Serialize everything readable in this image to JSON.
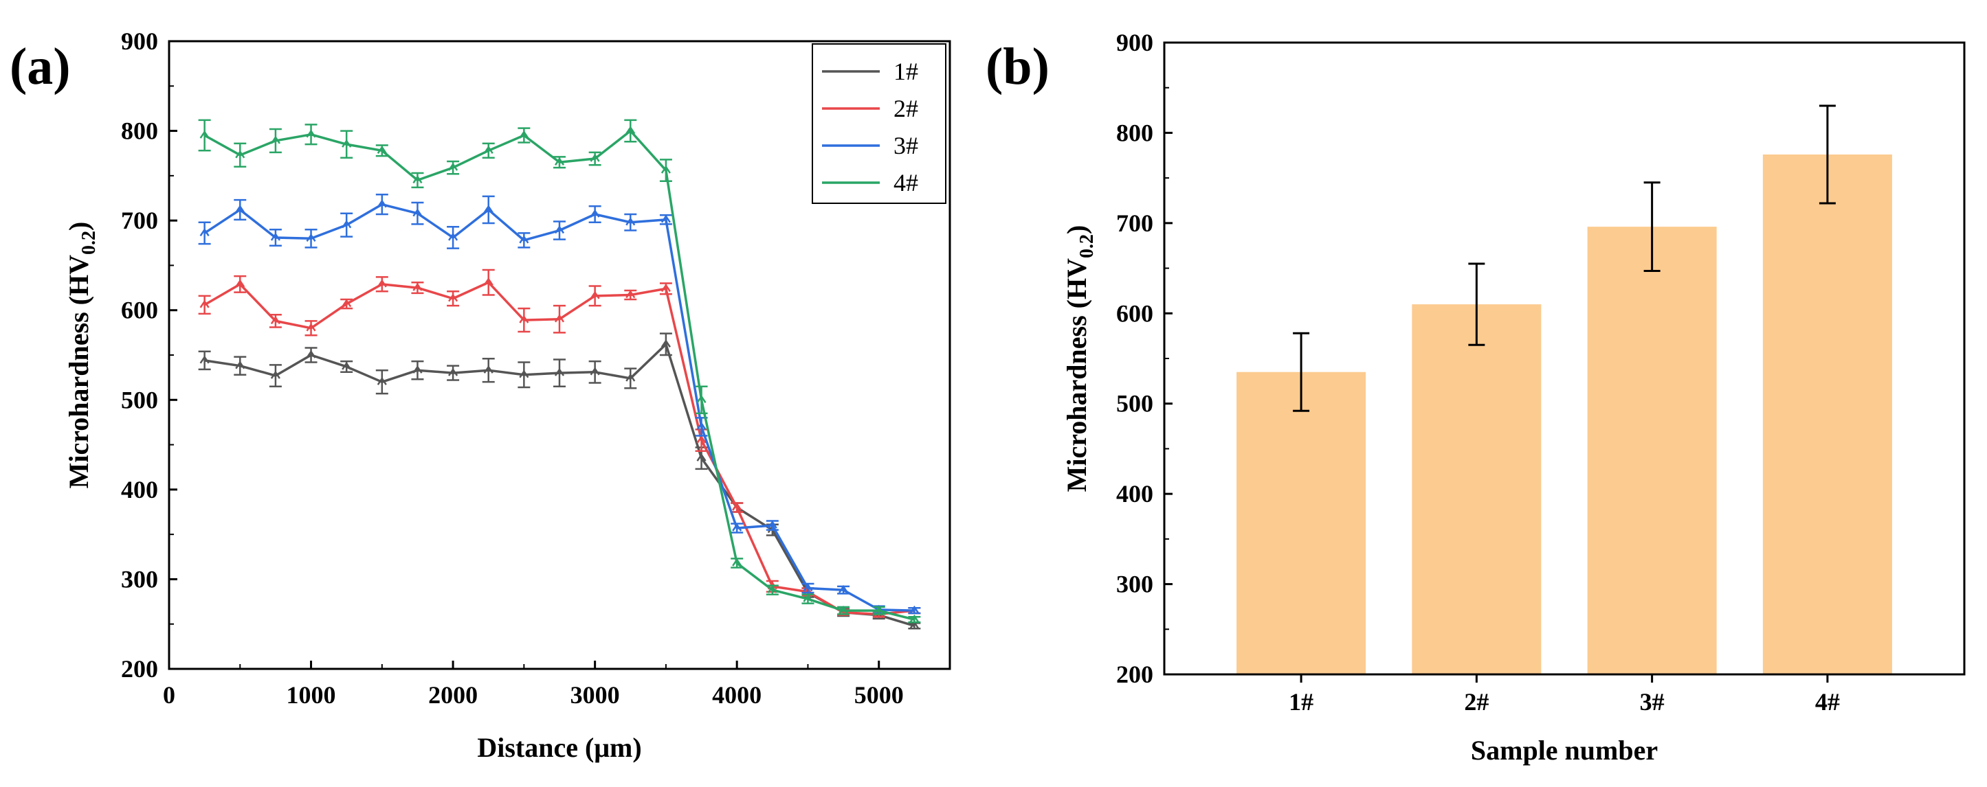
{
  "figure": {
    "panel_a_label": "(a)",
    "panel_b_label": "(b)"
  },
  "chart_data": [
    {
      "type": "line",
      "panel": "(a)",
      "xlabel": "Distance (μm)",
      "ylabel": "Microhardness (HV",
      "ylabel_sub": "0.2",
      "ylabel_end": ")",
      "xlim": [
        0,
        5500
      ],
      "ylim": [
        200,
        900
      ],
      "xticks": [
        0,
        1000,
        2000,
        3000,
        4000,
        5000
      ],
      "yticks": [
        200,
        300,
        400,
        500,
        600,
        700,
        800,
        900
      ],
      "legend_position": "top-right",
      "x": [
        250,
        500,
        750,
        1000,
        1250,
        1500,
        1750,
        2000,
        2250,
        2500,
        2750,
        3000,
        3250,
        3500,
        3750,
        4000,
        4250,
        4500,
        4750,
        5000,
        5250
      ],
      "series": [
        {
          "name": "1#",
          "color": "#555555",
          "values": [
            544,
            538,
            527,
            550,
            537,
            520,
            533,
            530,
            533,
            528,
            530,
            531,
            524,
            562,
            435,
            380,
            355,
            285,
            263,
            260,
            248
          ],
          "errors": [
            10,
            10,
            12,
            8,
            6,
            13,
            10,
            8,
            13,
            14,
            15,
            12,
            11,
            12,
            12,
            5,
            6,
            5,
            4,
            4,
            3
          ]
        },
        {
          "name": "2#",
          "color": "#e8474a",
          "values": [
            606,
            629,
            588,
            580,
            607,
            629,
            625,
            613,
            631,
            589,
            590,
            616,
            617,
            624,
            455,
            380,
            292,
            286,
            263,
            261,
            265
          ],
          "errors": [
            10,
            9,
            7,
            8,
            5,
            8,
            6,
            8,
            14,
            13,
            15,
            11,
            5,
            6,
            12,
            5,
            6,
            4,
            3,
            3,
            3
          ]
        },
        {
          "name": "3#",
          "color": "#2f6fdd",
          "values": [
            686,
            712,
            681,
            680,
            695,
            718,
            708,
            681,
            712,
            678,
            689,
            707,
            698,
            701,
            470,
            357,
            360,
            290,
            288,
            266,
            265
          ],
          "errors": [
            12,
            11,
            9,
            10,
            13,
            11,
            12,
            12,
            15,
            8,
            10,
            9,
            9,
            5,
            10,
            5,
            5,
            5,
            4,
            4,
            3
          ]
        },
        {
          "name": "4#",
          "color": "#2aa566",
          "values": [
            795,
            773,
            789,
            796,
            785,
            778,
            745,
            759,
            778,
            795,
            765,
            769,
            800,
            756,
            500,
            318,
            288,
            278,
            265,
            265,
            255
          ],
          "errors": [
            17,
            13,
            13,
            11,
            15,
            6,
            8,
            7,
            8,
            8,
            6,
            7,
            12,
            12,
            15,
            5,
            5,
            5,
            4,
            4,
            3
          ]
        }
      ]
    },
    {
      "type": "bar",
      "panel": "(b)",
      "xlabel": "Sample number",
      "ylabel": "Microhardness (HV",
      "ylabel_sub": "0.2",
      "ylabel_end": ")",
      "ylim": [
        200,
        900
      ],
      "yticks": [
        200,
        300,
        400,
        500,
        600,
        700,
        800,
        900
      ],
      "categories": [
        "1#",
        "2#",
        "3#",
        "4#"
      ],
      "values": [
        535,
        610,
        696,
        776
      ],
      "errors": [
        43,
        45,
        49,
        54
      ],
      "bar_color": "#fccb8f"
    }
  ]
}
